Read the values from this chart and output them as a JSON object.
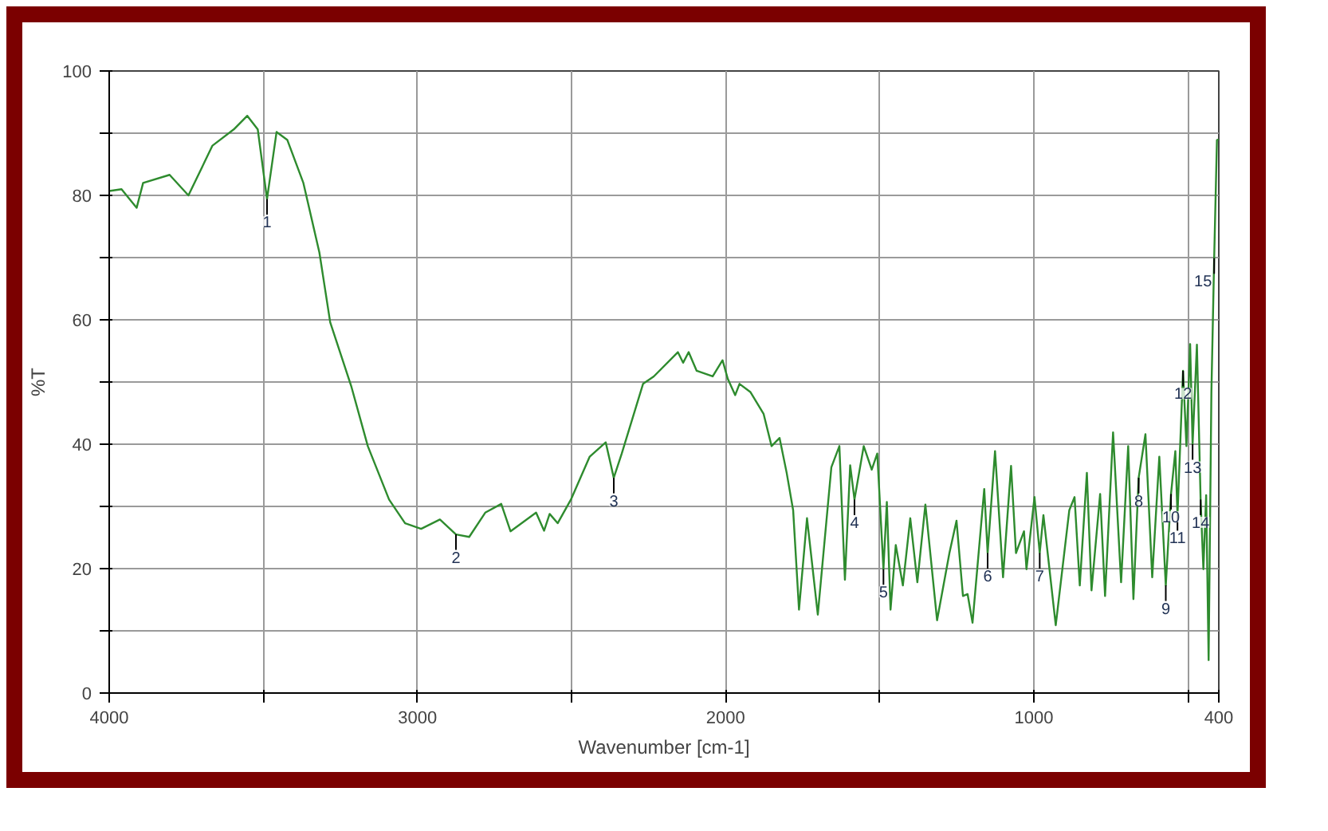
{
  "chart_data": {
    "type": "line",
    "xlabel": "Wavenumber [cm-1]",
    "ylabel": "%T",
    "xlim": [
      4000,
      400
    ],
    "ylim": [
      0,
      100
    ],
    "xticks": [
      4000,
      {
        "value": 3500,
        "label": null
      },
      3000,
      {
        "value": 2500,
        "label": null
      },
      2000,
      {
        "value": 1500,
        "label": null
      },
      1000,
      {
        "value": 500,
        "label": null
      },
      400
    ],
    "yticks": [
      0,
      {
        "value": 10,
        "label": null
      },
      20,
      {
        "value": 30,
        "label": null
      },
      40,
      {
        "value": 50,
        "label": null
      },
      60,
      {
        "value": 70,
        "label": null
      },
      80,
      {
        "value": 90,
        "label": null
      },
      100
    ],
    "grid": true,
    "marker": "none",
    "line_style": "solid",
    "series": [
      {
        "color": "#2e8b2e",
        "x": [
          4000,
          3960,
          3911,
          3890,
          3804,
          3743,
          3665,
          3596,
          3552,
          3518,
          3488,
          3457,
          3422,
          3370,
          3318,
          3283,
          3214,
          3161,
          3092,
          3040,
          2988,
          2927,
          2875,
          2832,
          2780,
          2728,
          2698,
          2615,
          2589,
          2571,
          2545,
          2502,
          2441,
          2389,
          2363,
          2337,
          2268,
          2233,
          2155,
          2138,
          2120,
          2094,
          2042,
          2010,
          1993,
          1969,
          1955,
          1920,
          1877,
          1851,
          1825,
          1802,
          1781,
          1762,
          1736,
          1701,
          1657,
          1631,
          1613,
          1596,
          1582,
          1552,
          1526,
          1508,
          1488,
          1477,
          1465,
          1448,
          1425,
          1401,
          1378,
          1352,
          1314,
          1274,
          1251,
          1230,
          1215,
          1199,
          1161,
          1150,
          1126,
          1100,
          1074,
          1058,
          1032,
          1024,
          998,
          981,
          969,
          929,
          885,
          868,
          851,
          828,
          813,
          785,
          769,
          743,
          717,
          694,
          677,
          660,
          638,
          616,
          593,
          572,
          555,
          541,
          534,
          516,
          505,
          493,
          485,
          471,
          459,
          450,
          441,
          433,
          424,
          415,
          406,
          400
        ],
        "values": [
          80.7,
          81,
          78,
          82,
          83.3,
          80,
          88,
          90.6,
          92.8,
          90.6,
          79.4,
          90.2,
          88.9,
          82,
          70.8,
          59.6,
          49.2,
          39.7,
          31.1,
          27.3,
          26.4,
          27.9,
          25.5,
          25.1,
          29,
          30.4,
          26,
          29,
          26.1,
          28.8,
          27.3,
          31.1,
          38,
          40.3,
          34.6,
          38.5,
          49.7,
          50.9,
          54.8,
          53.1,
          54.8,
          51.8,
          50.9,
          53.5,
          50.5,
          47.9,
          49.7,
          48.4,
          44.9,
          39.7,
          41,
          35.4,
          29.4,
          13.4,
          28.1,
          12.6,
          36.3,
          39.7,
          18.2,
          36.6,
          31.1,
          39.7,
          35.9,
          38.5,
          19.9,
          30.7,
          13.4,
          23.8,
          17.3,
          28.1,
          17.8,
          30.3,
          11.7,
          22.5,
          27.7,
          15.6,
          15.9,
          11.3,
          32.8,
          22.5,
          38.9,
          18.6,
          36.5,
          22.5,
          26,
          19.9,
          31.5,
          22.5,
          28.6,
          10.9,
          29.4,
          31.5,
          17.3,
          35.4,
          16.5,
          32,
          15.6,
          41.9,
          17.8,
          39.7,
          15.1,
          34.6,
          41.6,
          18.6,
          38,
          17.3,
          32,
          38.9,
          28.6,
          51.8,
          39.7,
          56.1,
          40,
          56,
          31.1,
          19.9,
          31.8,
          5.3,
          48.4,
          69.9,
          88.9,
          89
        ]
      }
    ],
    "annotations": [
      {
        "text": "1",
        "x": 3488,
        "y": 79.4
      },
      {
        "text": "2",
        "x": 2875,
        "y": 25.5
      },
      {
        "text": "3",
        "x": 2363,
        "y": 34.6
      },
      {
        "text": "4",
        "x": 1582,
        "y": 31.1
      },
      {
        "text": "5",
        "x": 1488,
        "y": 19.9
      },
      {
        "text": "6",
        "x": 1150,
        "y": 22.5
      },
      {
        "text": "7",
        "x": 981,
        "y": 22.5
      },
      {
        "text": "8",
        "x": 660,
        "y": 34.6
      },
      {
        "text": "9",
        "x": 572,
        "y": 17.3
      },
      {
        "text": "10",
        "x": 555,
        "y": 32
      },
      {
        "text": "11",
        "x": 534,
        "y": 28.6
      },
      {
        "text": "12",
        "x": 516,
        "y": 51.8
      },
      {
        "text": "13",
        "x": 485,
        "y": 40
      },
      {
        "text": "14",
        "x": 459,
        "y": 31.1
      },
      {
        "text": "15",
        "x": 415,
        "y": 69.9
      }
    ]
  }
}
